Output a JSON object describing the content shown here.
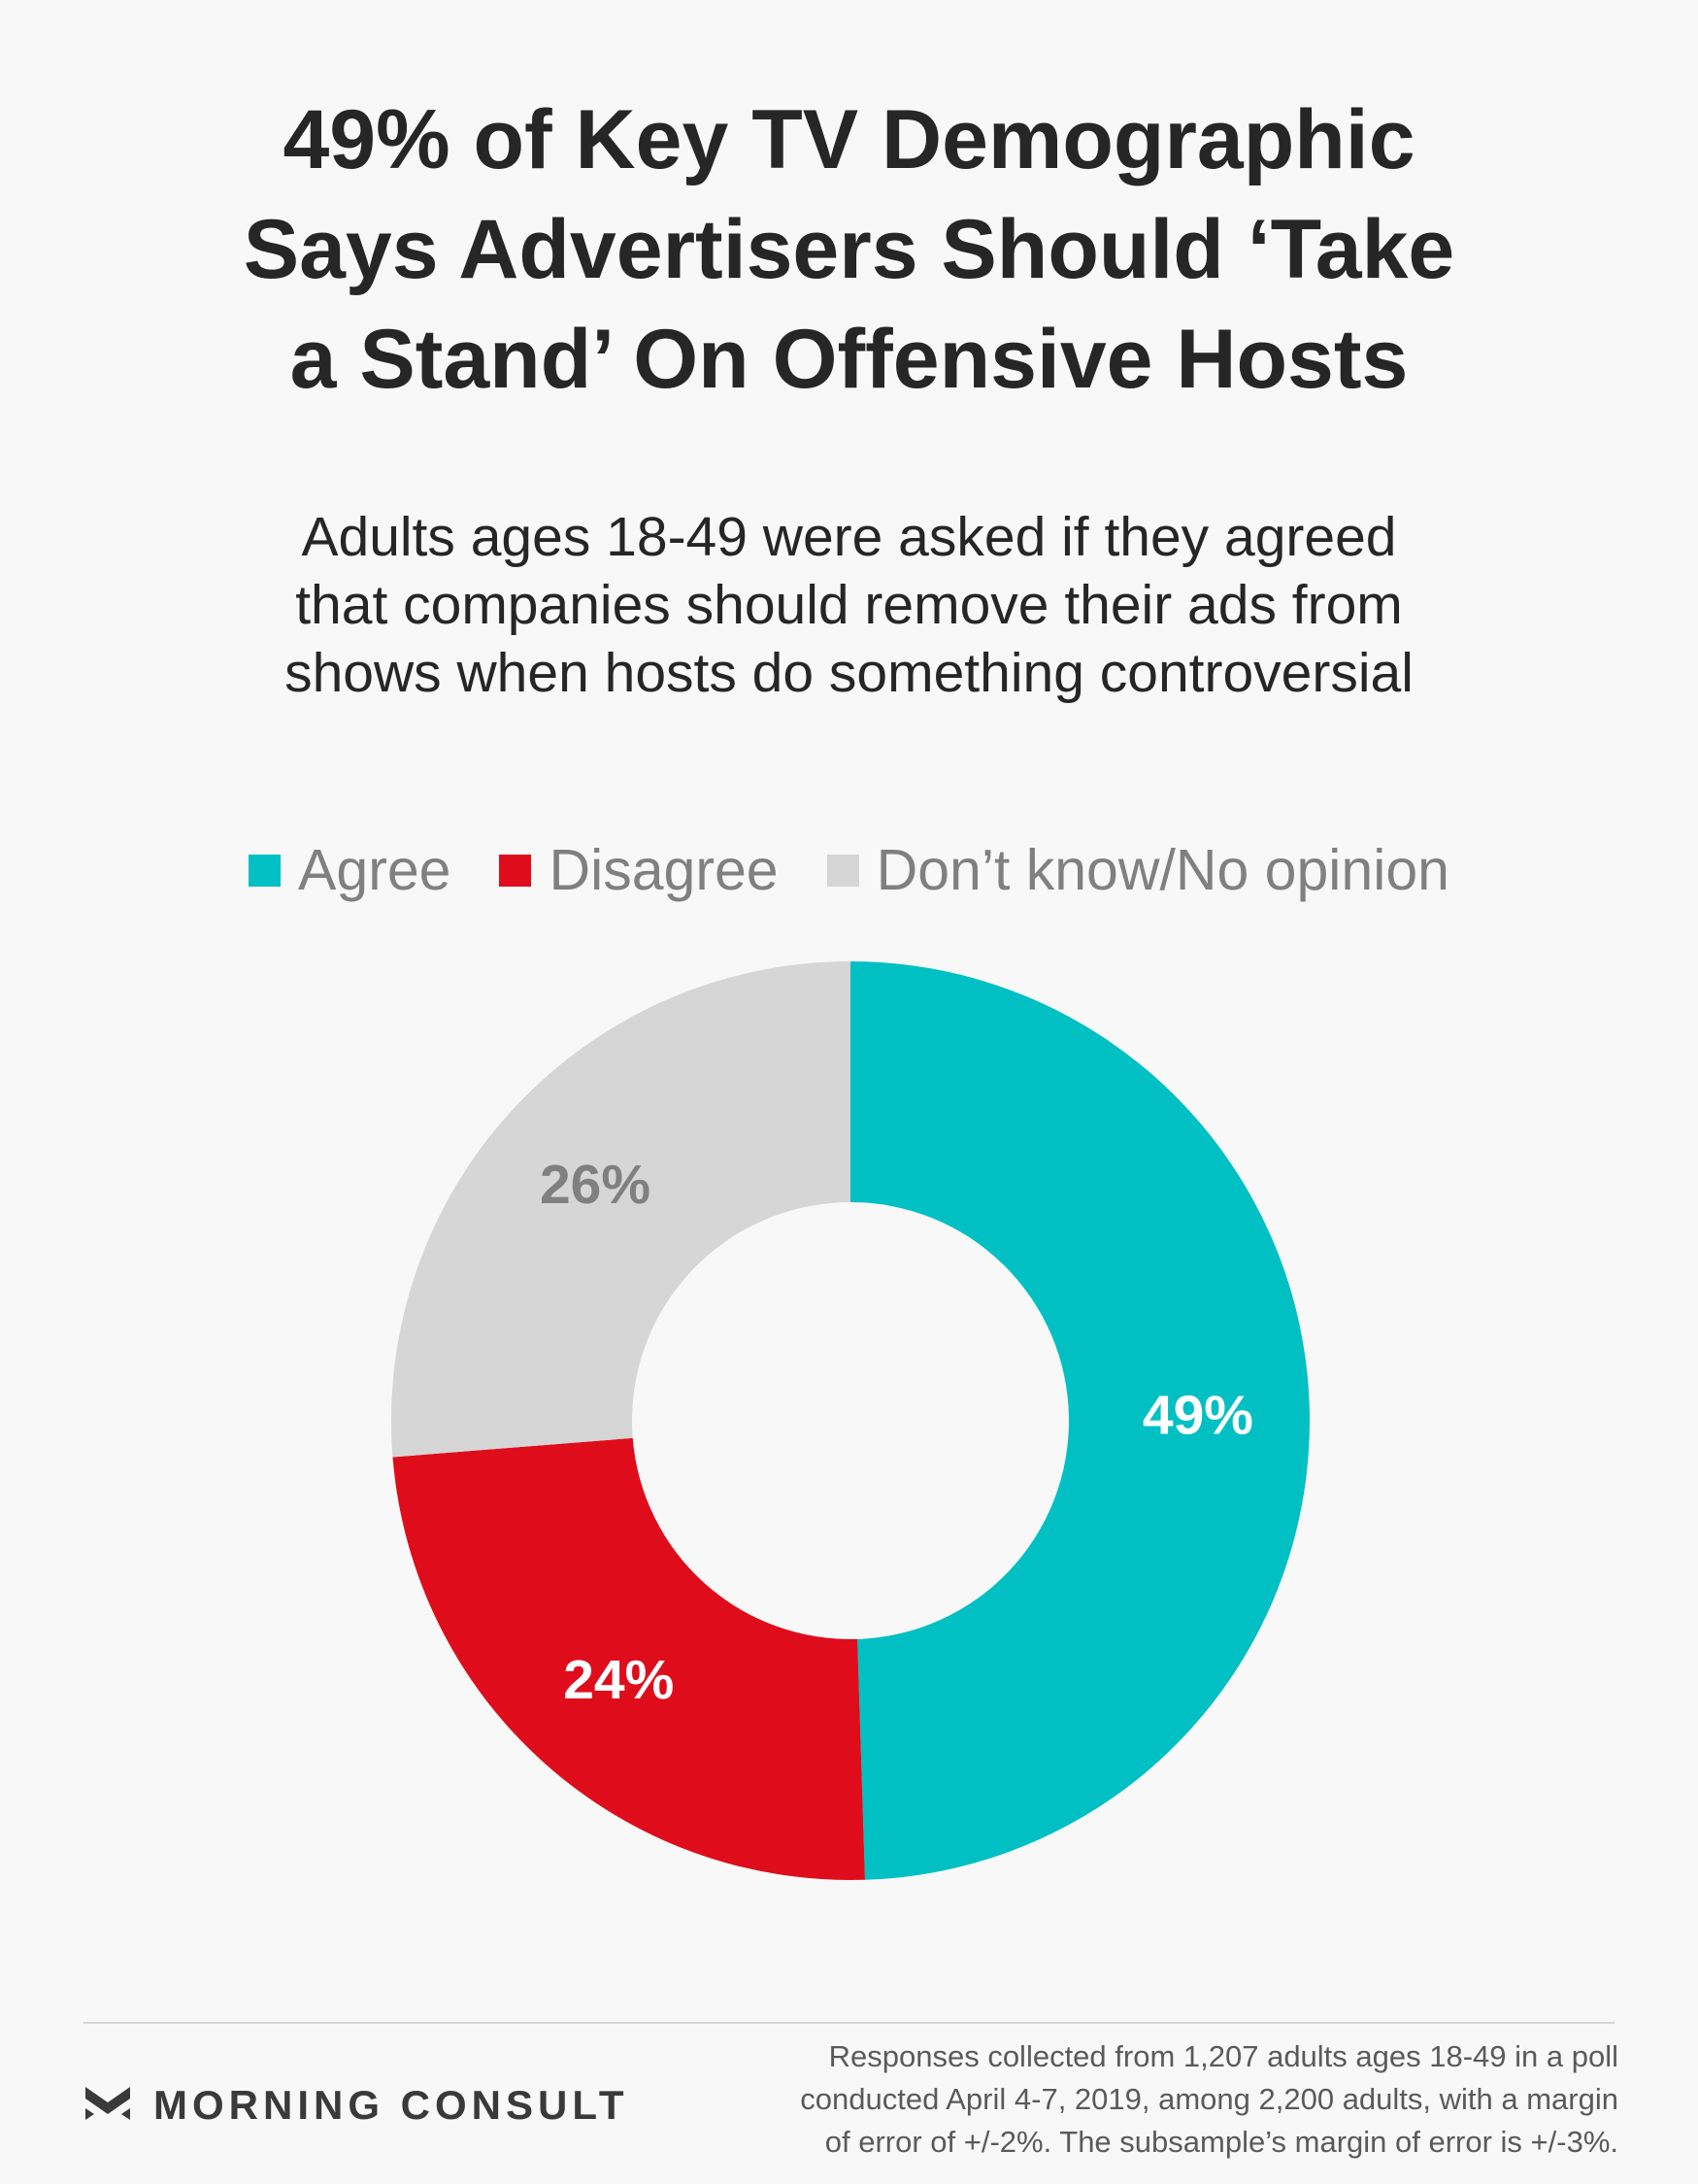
{
  "title": {
    "lines": [
      "49% of Key TV Demographic",
      "Says Advertisers Should ‘Take",
      "a Stand’ On Offensive Hosts"
    ]
  },
  "subtitle": {
    "lines": [
      "Adults ages 18-49 were asked if they agreed",
      "that companies should remove their ads from",
      "shows when hosts do something controversial"
    ]
  },
  "colors": {
    "agree": "#00c0c3",
    "disagree": "#df0d1c",
    "dont_know": "#d6d6d6",
    "background": "#f8f8f8"
  },
  "chart_data": {
    "type": "pie",
    "variant": "donut",
    "title": "49% of Key TV Demographic Says Advertisers Should ‘Take a Stand’ On Offensive Hosts",
    "categories": [
      "Agree",
      "Disagree",
      "Don’t know/No opinion"
    ],
    "values": [
      49,
      24,
      26
    ],
    "labels": [
      "49%",
      "24%",
      "26%"
    ],
    "legend_position": "top",
    "start_angle": "12 o'clock, clockwise"
  },
  "legend": {
    "items": [
      {
        "label": "Agree",
        "color_key": "agree"
      },
      {
        "label": "Disagree",
        "color_key": "disagree"
      },
      {
        "label": "Don’t know/No opinion",
        "color_key": "dont_know"
      }
    ]
  },
  "footer": {
    "brand": "MORNING CONSULT",
    "brand_icon": "morning-consult-chevron-icon",
    "note_lines": [
      "Responses collected from 1,207 adults ages 18-49 in a poll",
      "conducted April 4-7, 2019, among 2,200 adults, with a margin",
      "of error of +/-2%. The subsample’s margin of error is +/-3%."
    ]
  }
}
